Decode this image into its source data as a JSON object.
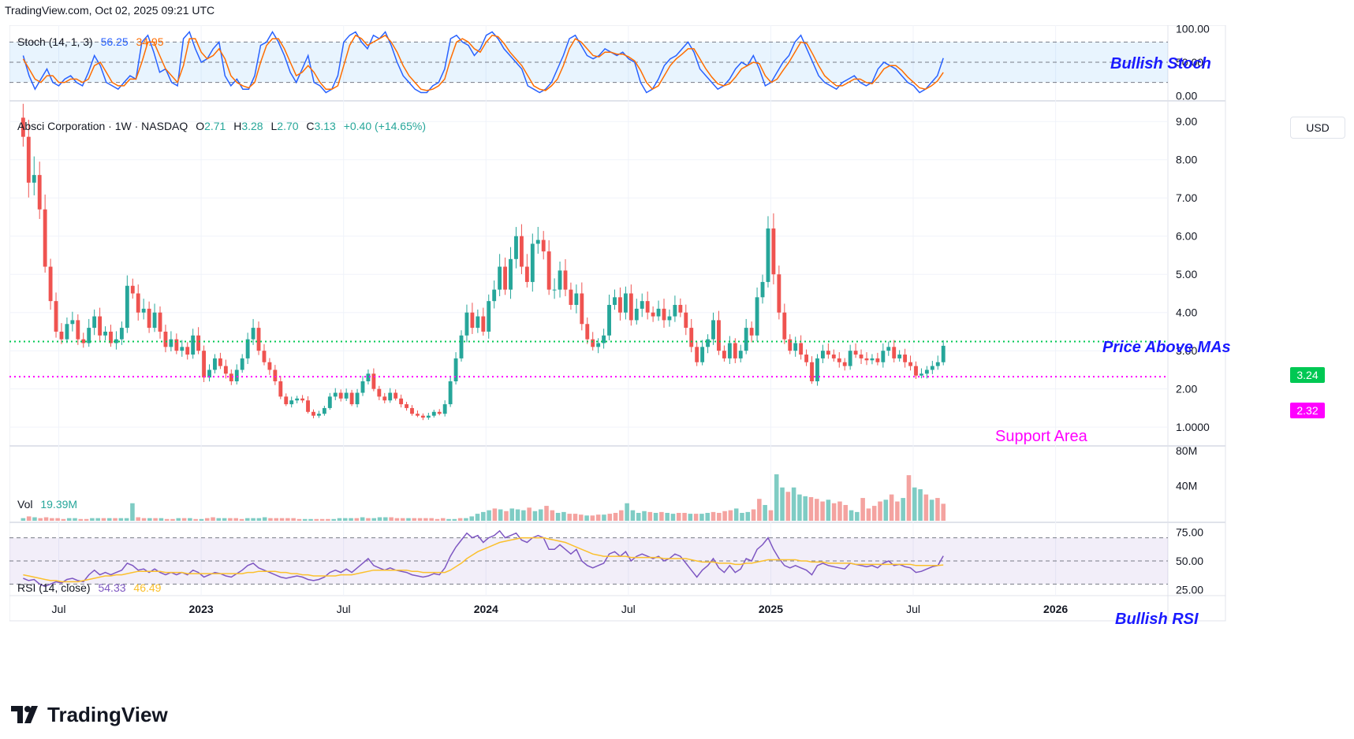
{
  "header": "TradingView.com, Oct 02, 2025 09:21 UTC",
  "logo_text": "TradingView",
  "currency_button": "USD",
  "price_legend": {
    "name": "Absci Corporation · 1W · NASDAQ",
    "open_label": "O",
    "open": "2.71",
    "high_label": "H",
    "high": "3.28",
    "low_label": "L",
    "low": "2.70",
    "close_label": "C",
    "close": "3.13",
    "change": "+0.40 (+14.65%)"
  },
  "stoch_legend": {
    "name": "Stoch (14, 1, 3)",
    "k": "56.25",
    "d": "34.95"
  },
  "vol_legend": {
    "name": "Vol",
    "value": "19.39M"
  },
  "rsi_legend": {
    "name": "RSI (14, close)",
    "rsi": "54.33",
    "ma": "46.49"
  },
  "annotations": {
    "stoch": "Bullish Stoch",
    "price": "Price Above MAs",
    "support": "Support Area",
    "rsi": "Bullish RSI"
  },
  "levels": {
    "resistance": {
      "label": "3.24",
      "value": 3.24,
      "color": "#00c853"
    },
    "support": {
      "label": "2.32",
      "value": 2.32,
      "color": "#ff00ff"
    }
  },
  "colors": {
    "up": "#26a69a",
    "down": "#ef5350",
    "vol_up": "#7fccc4",
    "vol_down": "#f4a3a0",
    "stoch_k": "#2962ff",
    "stoch_d": "#ff6d00",
    "rsi": "#7e57c2",
    "rsi_ma": "#fbc02d",
    "annot_blue": "#1a1aff",
    "annot_magenta": "#ff00ff"
  },
  "chart_data": [
    {
      "type": "candlestick",
      "title": "Absci Corporation · 1W · NASDAQ",
      "y_ticks": [
        "9.00",
        "8.00",
        "7.00",
        "6.00",
        "5.00",
        "4.00",
        "3.00",
        "2.00",
        "1.0000"
      ],
      "ylim": [
        0.55,
        9.5
      ],
      "x_ticks": [
        "Jul",
        "2023",
        "Jul",
        "2024",
        "Jul",
        "2025",
        "Jul",
        "2026"
      ],
      "x_tick_weeks": [
        6.5,
        32.5,
        58.5,
        84.5,
        110.5,
        136.5,
        162.5,
        188.5
      ],
      "x_range_weeks": [
        -2.5,
        209
      ],
      "weekly_close": [
        8.6,
        7.4,
        7.6,
        6.7,
        5.2,
        4.3,
        3.5,
        3.3,
        3.7,
        3.8,
        3.3,
        3.2,
        3.6,
        3.9,
        3.4,
        3.5,
        3.2,
        3.3,
        3.6,
        4.7,
        4.5,
        4.0,
        4.1,
        3.6,
        4.0,
        3.5,
        3.1,
        3.3,
        3.0,
        3.1,
        2.9,
        3.4,
        3.0,
        2.3,
        2.5,
        2.8,
        2.6,
        2.4,
        2.2,
        2.5,
        2.8,
        3.3,
        3.6,
        3.0,
        2.7,
        2.5,
        2.2,
        1.8,
        1.6,
        1.7,
        1.75,
        1.7,
        1.4,
        1.3,
        1.35,
        1.5,
        1.8,
        1.9,
        1.75,
        1.9,
        1.6,
        1.9,
        2.2,
        2.4,
        2.0,
        1.8,
        1.7,
        1.9,
        1.75,
        1.6,
        1.5,
        1.35,
        1.3,
        1.25,
        1.3,
        1.4,
        1.35,
        1.6,
        2.2,
        2.8,
        3.4,
        4.0,
        3.6,
        3.9,
        3.5,
        4.3,
        4.6,
        5.2,
        4.6,
        5.4,
        6.0,
        5.2,
        4.8,
        5.8,
        5.9,
        5.6,
        4.6,
        4.6,
        5.1,
        4.6,
        4.2,
        4.5,
        3.7,
        3.3,
        3.1,
        3.2,
        3.4,
        4.2,
        4.4,
        4.0,
        4.5,
        3.8,
        4.1,
        4.3,
        4.0,
        3.9,
        4.1,
        3.8,
        3.9,
        4.2,
        4.0,
        3.6,
        3.1,
        2.7,
        3.1,
        3.3,
        3.8,
        3.0,
        2.8,
        3.2,
        2.8,
        3.0,
        3.6,
        3.4,
        4.4,
        4.8,
        6.2,
        5.0,
        4.0,
        3.3,
        3.0,
        3.2,
        2.9,
        2.7,
        2.2,
        2.8,
        3.0,
        2.9,
        2.8,
        2.7,
        2.6,
        3.0,
        2.9,
        2.8,
        2.75,
        2.8,
        2.7,
        3.0,
        3.1,
        2.8,
        2.9,
        2.7,
        2.6,
        2.35,
        2.4,
        2.5,
        2.6,
        2.7,
        3.13
      ]
    },
    {
      "type": "line",
      "title": "Stoch (14, 1, 3)",
      "y_ticks": [
        "100.00",
        "50.00",
        "0.00"
      ],
      "ylim": [
        -5,
        105
      ],
      "bands": [
        20,
        50,
        80
      ],
      "series": [
        {
          "name": "%K",
          "values": [
            60,
            30,
            10,
            25,
            40,
            20,
            15,
            25,
            30,
            20,
            15,
            35,
            60,
            45,
            20,
            15,
            10,
            20,
            30,
            25,
            80,
            90,
            65,
            35,
            40,
            20,
            15,
            85,
            95,
            70,
            50,
            55,
            70,
            80,
            30,
            15,
            25,
            10,
            10,
            30,
            75,
            80,
            95,
            80,
            60,
            35,
            20,
            40,
            60,
            20,
            15,
            5,
            10,
            30,
            80,
            90,
            95,
            80,
            70,
            90,
            85,
            95,
            75,
            50,
            30,
            20,
            10,
            5,
            5,
            15,
            20,
            40,
            85,
            90,
            80,
            75,
            60,
            70,
            90,
            95,
            85,
            70,
            60,
            50,
            40,
            15,
            10,
            5,
            10,
            20,
            40,
            60,
            85,
            90,
            75,
            60,
            55,
            60,
            70,
            65,
            60,
            65,
            55,
            50,
            20,
            5,
            10,
            25,
            45,
            55,
            60,
            70,
            80,
            65,
            40,
            30,
            20,
            10,
            15,
            25,
            40,
            50,
            45,
            60,
            40,
            15,
            20,
            35,
            50,
            60,
            80,
            90,
            70,
            50,
            30,
            20,
            15,
            10,
            20,
            25,
            30,
            20,
            15,
            20,
            40,
            50,
            45,
            40,
            30,
            20,
            15,
            5,
            10,
            20,
            30,
            56.25
          ]
        },
        {
          "name": "%D",
          "values": [
            55,
            40,
            25,
            20,
            30,
            30,
            20,
            20,
            25,
            25,
            20,
            25,
            45,
            50,
            35,
            20,
            15,
            15,
            25,
            25,
            50,
            80,
            80,
            60,
            40,
            30,
            20,
            45,
            85,
            85,
            65,
            55,
            60,
            70,
            55,
            30,
            20,
            15,
            12,
            20,
            50,
            75,
            85,
            85,
            70,
            50,
            30,
            35,
            45,
            35,
            20,
            10,
            10,
            15,
            45,
            75,
            90,
            85,
            75,
            80,
            85,
            90,
            80,
            65,
            45,
            30,
            20,
            10,
            8,
            10,
            15,
            25,
            55,
            80,
            85,
            80,
            70,
            65,
            80,
            90,
            88,
            78,
            65,
            55,
            45,
            30,
            15,
            10,
            8,
            15,
            25,
            45,
            70,
            85,
            80,
            70,
            60,
            58,
            65,
            65,
            62,
            62,
            58,
            52,
            38,
            20,
            10,
            15,
            30,
            45,
            55,
            62,
            70,
            70,
            55,
            40,
            28,
            18,
            15,
            18,
            28,
            40,
            45,
            50,
            48,
            30,
            20,
            25,
            38,
            50,
            65,
            80,
            78,
            62,
            45,
            30,
            22,
            15,
            15,
            20,
            25,
            25,
            20,
            18,
            28,
            40,
            45,
            45,
            38,
            28,
            20,
            12,
            10,
            15,
            22,
            34.95
          ]
        }
      ]
    },
    {
      "type": "bar",
      "title": "Vol",
      "y_ticks": [
        "80M",
        "40M"
      ],
      "ylim": [
        0,
        80
      ],
      "unit": "M",
      "values": [
        3,
        5,
        4,
        3,
        4,
        3,
        3,
        2,
        3,
        3,
        2,
        2,
        3,
        3,
        3,
        3,
        3,
        3,
        3,
        20,
        4,
        3,
        3,
        3,
        3,
        2,
        2,
        3,
        3,
        3,
        2,
        2,
        3,
        4,
        3,
        3,
        3,
        3,
        2,
        3,
        3,
        3,
        4,
        3,
        3,
        3,
        3,
        3,
        2,
        2,
        2,
        2,
        2,
        2,
        2,
        3,
        3,
        3,
        3,
        4,
        3,
        3,
        4,
        4,
        4,
        3,
        3,
        3,
        3,
        3,
        3,
        3,
        2,
        3,
        2,
        2,
        3,
        3,
        5,
        8,
        10,
        12,
        14,
        13,
        11,
        14,
        13,
        12,
        15,
        11,
        13,
        17,
        12,
        9,
        10,
        8,
        8,
        7,
        6,
        6,
        7,
        7,
        8,
        9,
        12,
        20,
        12,
        9,
        11,
        10,
        9,
        10,
        9,
        8,
        9,
        9,
        8,
        8,
        8,
        9,
        10,
        9,
        11,
        12,
        14,
        9,
        10,
        13,
        25,
        18,
        12,
        53,
        38,
        33,
        38,
        30,
        28,
        27,
        25,
        22,
        24,
        20,
        22,
        18,
        12,
        10,
        26,
        14,
        17,
        22,
        24,
        30,
        22,
        26,
        52,
        38,
        36,
        30,
        24,
        26,
        19.39
      ],
      "up": [
        1,
        0,
        1,
        0,
        0,
        0,
        0,
        0,
        1,
        1,
        0,
        0,
        1,
        1,
        0,
        1,
        0,
        1,
        1,
        1,
        0,
        0,
        1,
        0,
        1,
        0,
        0,
        1,
        0,
        1,
        0,
        1,
        0,
        0,
        1,
        1,
        0,
        0,
        0,
        1,
        1,
        1,
        1,
        0,
        0,
        0,
        0,
        0,
        0,
        1,
        1,
        0,
        0,
        0,
        1,
        1,
        1,
        1,
        0,
        1,
        0,
        1,
        1,
        1,
        0,
        0,
        0,
        1,
        0,
        0,
        0,
        0,
        0,
        0,
        1,
        1,
        0,
        1,
        1,
        1,
        1,
        1,
        0,
        1,
        0,
        1,
        1,
        1,
        0,
        1,
        1,
        0,
        0,
        1,
        1,
        0,
        0,
        0,
        1,
        0,
        0,
        1,
        0,
        0,
        0,
        1,
        1,
        1,
        1,
        0,
        1,
        0,
        1,
        1,
        0,
        0,
        1,
        0,
        1,
        1,
        0,
        0,
        0,
        0,
        1,
        1,
        1,
        0,
        0,
        1,
        0,
        1,
        1,
        0,
        1,
        1,
        1,
        0,
        0,
        0,
        1,
        0,
        0,
        0,
        1,
        1,
        0,
        0,
        0,
        0,
        1,
        0,
        0,
        1,
        0,
        1,
        1,
        0,
        1,
        0,
        0,
        0,
        1,
        1,
        1,
        1
      ]
    },
    {
      "type": "line",
      "title": "RSI (14, close)",
      "y_ticks": [
        "75.00",
        "50.00",
        "25.00"
      ],
      "ylim": [
        20,
        82
      ],
      "bands": [
        30,
        50,
        70
      ],
      "series": [
        {
          "name": "RSI",
          "values": [
            35,
            33,
            34,
            30,
            28,
            30,
            32,
            31,
            34,
            35,
            33,
            32,
            38,
            42,
            38,
            40,
            38,
            40,
            42,
            48,
            46,
            42,
            43,
            40,
            43,
            40,
            38,
            40,
            38,
            40,
            38,
            42,
            40,
            36,
            38,
            40,
            39,
            37,
            36,
            39,
            42,
            46,
            48,
            44,
            42,
            40,
            38,
            36,
            35,
            36,
            37,
            36,
            34,
            33,
            34,
            36,
            40,
            42,
            40,
            43,
            40,
            44,
            48,
            52,
            46,
            44,
            42,
            44,
            42,
            41,
            40,
            38,
            37,
            36,
            37,
            39,
            38,
            44,
            54,
            62,
            68,
            74,
            70,
            72,
            66,
            70,
            72,
            76,
            70,
            72,
            74,
            68,
            66,
            70,
            72,
            70,
            60,
            60,
            64,
            60,
            56,
            60,
            50,
            46,
            44,
            46,
            48,
            56,
            58,
            54,
            58,
            50,
            54,
            56,
            54,
            52,
            54,
            50,
            52,
            56,
            54,
            48,
            42,
            36,
            42,
            46,
            52,
            44,
            40,
            46,
            40,
            43,
            52,
            50,
            60,
            64,
            70,
            60,
            52,
            46,
            44,
            46,
            44,
            42,
            38,
            46,
            48,
            46,
            45,
            44,
            43,
            48,
            47,
            46,
            45,
            46,
            44,
            48,
            50,
            46,
            47,
            45,
            44,
            40,
            41,
            43,
            45,
            46,
            54.33
          ]
        },
        {
          "name": "RSI-based MA",
          "values": [
            38,
            37,
            36,
            35,
            34,
            33,
            33,
            32,
            32,
            32,
            32,
            33,
            34,
            35,
            36,
            37,
            37,
            38,
            38,
            39,
            40,
            41,
            41,
            41,
            41,
            41,
            40,
            40,
            40,
            40,
            39,
            39,
            39,
            39,
            39,
            39,
            39,
            39,
            39,
            39,
            39,
            40,
            40,
            41,
            41,
            41,
            41,
            40,
            40,
            39,
            39,
            38,
            38,
            37,
            37,
            37,
            37,
            37,
            38,
            38,
            38,
            39,
            40,
            41,
            42,
            42,
            42,
            42,
            42,
            42,
            42,
            41,
            41,
            40,
            40,
            40,
            40,
            40,
            42,
            45,
            48,
            52,
            55,
            58,
            60,
            62,
            64,
            66,
            67,
            68,
            69,
            70,
            70,
            70,
            70,
            70,
            69,
            68,
            67,
            66,
            64,
            62,
            60,
            58,
            56,
            55,
            54,
            54,
            54,
            54,
            54,
            53,
            53,
            53,
            53,
            53,
            53,
            52,
            52,
            52,
            52,
            52,
            51,
            50,
            49,
            49,
            49,
            48,
            48,
            48,
            47,
            47,
            48,
            48,
            49,
            50,
            51,
            51,
            51,
            51,
            51,
            51,
            50,
            50,
            49,
            49,
            49,
            48,
            48,
            48,
            48,
            48,
            47,
            47,
            47,
            47,
            47,
            47,
            47,
            47,
            47,
            47,
            47,
            46,
            46,
            46,
            46,
            46,
            46.49
          ]
        }
      ]
    }
  ]
}
